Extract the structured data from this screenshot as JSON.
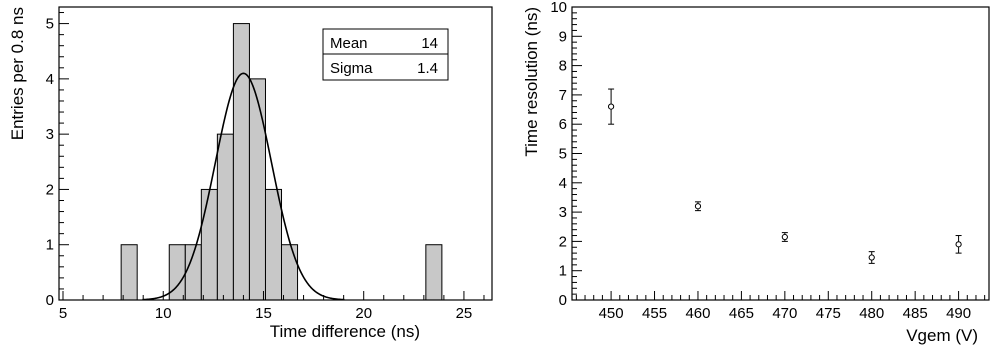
{
  "chart_data": [
    {
      "type": "bar",
      "xlabel": "Time difference (ns)",
      "ylabel": "Entries per 0.8 ns",
      "xlim": [
        4.8,
        26.4
      ],
      "ylim": [
        0,
        5.3
      ],
      "xticks": [
        "5",
        "10",
        "15",
        "20",
        "25"
      ],
      "yticks": [
        "0",
        "1",
        "2",
        "3",
        "4",
        "5"
      ],
      "grid": false,
      "bins": [
        {
          "x_low": 7.9,
          "x_high": 8.7,
          "value": 1
        },
        {
          "x_low": 10.3,
          "x_high": 11.1,
          "value": 1
        },
        {
          "x_low": 11.1,
          "x_high": 11.9,
          "value": 1
        },
        {
          "x_low": 11.9,
          "x_high": 12.7,
          "value": 2
        },
        {
          "x_low": 12.7,
          "x_high": 13.5,
          "value": 3
        },
        {
          "x_low": 13.5,
          "x_high": 14.3,
          "value": 5
        },
        {
          "x_low": 14.3,
          "x_high": 15.1,
          "value": 4
        },
        {
          "x_low": 15.1,
          "x_high": 15.9,
          "value": 2
        },
        {
          "x_low": 15.9,
          "x_high": 16.7,
          "value": 1
        },
        {
          "x_low": 23.1,
          "x_high": 23.9,
          "value": 1
        }
      ],
      "fit": {
        "type": "gaussian",
        "amplitude": 4.1,
        "mean": 14,
        "sigma": 1.4
      },
      "stats": [
        {
          "label": "Mean",
          "value": "14"
        },
        {
          "label": "Sigma",
          "value": "1.4"
        }
      ]
    },
    {
      "type": "scatter",
      "xlabel": "Vgem (V)",
      "ylabel": "Time resolution (ns)",
      "xlim": [
        445.5,
        493.5
      ],
      "ylim": [
        0,
        10
      ],
      "xticks": [
        "450",
        "455",
        "460",
        "465",
        "470",
        "475",
        "480",
        "485",
        "490"
      ],
      "yticks": [
        "0",
        "1",
        "2",
        "3",
        "4",
        "5",
        "6",
        "7",
        "8",
        "9",
        "10"
      ],
      "grid": false,
      "points": [
        {
          "x": 450,
          "y": 6.6,
          "err": 0.6
        },
        {
          "x": 460,
          "y": 3.2,
          "err": 0.15
        },
        {
          "x": 470,
          "y": 2.15,
          "err": 0.15
        },
        {
          "x": 480,
          "y": 1.45,
          "err": 0.2
        },
        {
          "x": 490,
          "y": 1.9,
          "err": 0.3
        }
      ]
    }
  ]
}
